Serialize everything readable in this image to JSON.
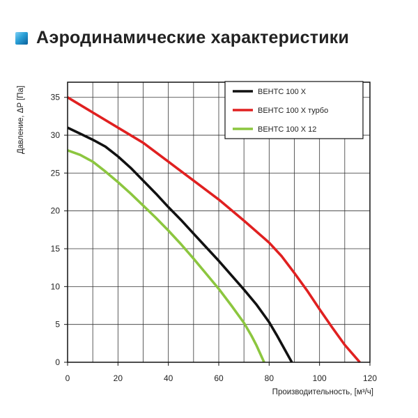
{
  "header": {
    "title": "Аэродинамические характеристики",
    "icon": "blue-square-icon"
  },
  "chart_data": {
    "type": "line",
    "title": "",
    "xlabel": "Производительность, [м³/ч]",
    "ylabel": "Давление, ΔP [Па]",
    "xlim": [
      0,
      120
    ],
    "ylim": [
      0,
      37
    ],
    "xticks": [
      0,
      20,
      40,
      60,
      80,
      100,
      120
    ],
    "yticks": [
      0,
      5,
      10,
      15,
      20,
      25,
      30,
      35
    ],
    "grid": true,
    "legend_position": "top-right",
    "series": [
      {
        "name": "ВЕНТС 100 Х",
        "color": "#111111",
        "x": [
          0,
          5,
          10,
          15,
          20,
          25,
          30,
          35,
          40,
          45,
          50,
          55,
          60,
          65,
          70,
          75,
          80,
          83,
          86,
          89
        ],
        "y": [
          31,
          30.2,
          29.4,
          28.5,
          27.2,
          25.7,
          24,
          22.3,
          20.5,
          18.8,
          17,
          15.2,
          13.4,
          11.5,
          9.6,
          7.6,
          5.3,
          3.6,
          1.8,
          0
        ]
      },
      {
        "name": "ВЕНТС 100 Х турбо",
        "color": "#e02020",
        "x": [
          0,
          10,
          20,
          30,
          40,
          50,
          60,
          70,
          80,
          85,
          90,
          95,
          100,
          105,
          110,
          116
        ],
        "y": [
          35,
          33,
          31,
          29,
          26.5,
          24,
          21.5,
          18.7,
          15.8,
          14,
          11.8,
          9.5,
          7,
          4.6,
          2.3,
          0
        ]
      },
      {
        "name": "ВЕНТС 100 Х 12",
        "color": "#8cc63f",
        "x": [
          0,
          5,
          10,
          15,
          20,
          25,
          30,
          35,
          40,
          45,
          50,
          55,
          60,
          65,
          70,
          73,
          75,
          78
        ],
        "y": [
          28,
          27.4,
          26.5,
          25.2,
          23.8,
          22.3,
          20.7,
          19.1,
          17.4,
          15.6,
          13.7,
          11.7,
          9.7,
          7.5,
          5.2,
          3.5,
          2.2,
          0
        ]
      }
    ]
  }
}
